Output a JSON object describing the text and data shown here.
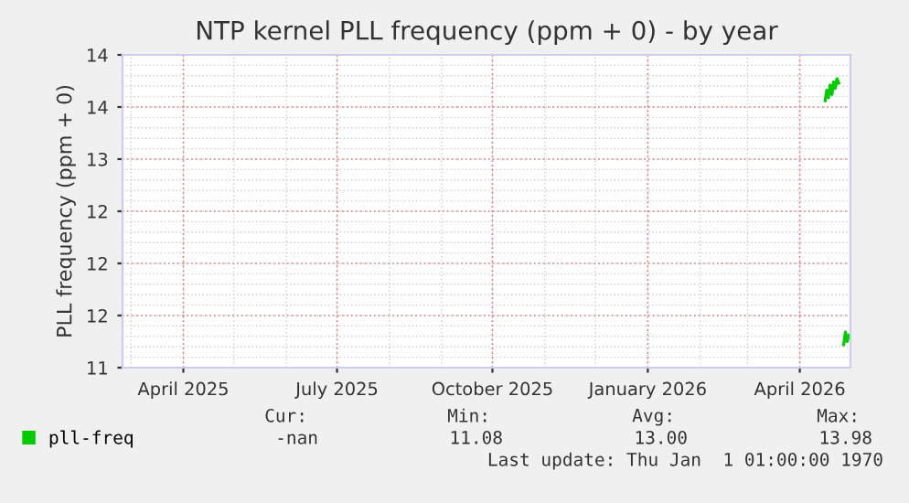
{
  "chart_data": {
    "type": "line",
    "title": "NTP kernel PLL frequency (ppm + 0) - by year",
    "ylabel": "PLL frequency (ppm + 0)",
    "series": [
      {
        "name": "pll-freq",
        "color": "#00cc00",
        "x": [
          "2026-04-16",
          "2026-04-17",
          "2026-04-18",
          "2026-04-19",
          "2026-04-20",
          "2026-04-21",
          "2026-04-22",
          "2026-04-23",
          "2026-04-24"
        ],
        "values": [
          13.56,
          13.66,
          13.59,
          13.71,
          13.62,
          13.74,
          13.68,
          13.77,
          13.73
        ]
      },
      {
        "color": "#00cc00",
        "x": [
          "2026-04-27",
          "2026-04-28",
          "2026-04-29",
          "2026-04-30"
        ],
        "values": [
          11.22,
          11.34,
          11.25,
          11.31
        ]
      }
    ],
    "xlim": [
      "2025-02-24",
      "2026-05-01"
    ],
    "xticks": [
      {
        "value": "2025-04-01",
        "label": "April 2025"
      },
      {
        "value": "2025-07-01",
        "label": "July 2025"
      },
      {
        "value": "2025-10-01",
        "label": "October 2025"
      },
      {
        "value": "2026-01-01",
        "label": "January 2026"
      },
      {
        "value": "2026-04-01",
        "label": "April 2026"
      }
    ],
    "ylim": [
      11,
      14
    ],
    "yticks": [
      11,
      {
        "value": 11.5,
        "label": "12"
      },
      12,
      {
        "value": 12.5,
        "label": "12"
      },
      13,
      {
        "value": 13.5,
        "label": "14"
      },
      14
    ],
    "grid": true,
    "legend": "bottom left",
    "line_style": "solid",
    "marker": "none",
    "annotations": [
      "Cur:",
      "Min:",
      "Avg:",
      "Max:",
      "-nan",
      "11.08",
      "13.00",
      "13.98",
      "Last update: Thu Jan  1 01:00:00 1970"
    ]
  }
}
